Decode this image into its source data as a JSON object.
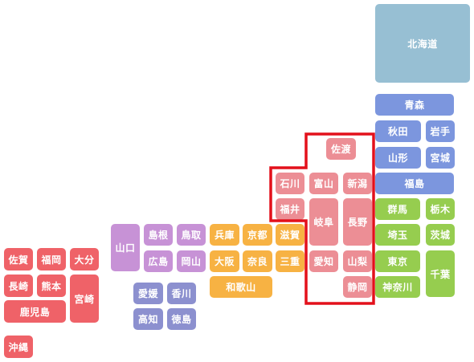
{
  "colors": {
    "hokkaido": "#97bfd3",
    "tohoku": "#7c96de",
    "kanto": "#96cd4f",
    "chubu": "#ec8e95",
    "kinki": "#f7b243",
    "chugoku": "#c792d6",
    "shikoku": "#8c90cf",
    "kyushu": "#ef6268",
    "highlight": "#e3101b"
  },
  "prefectures": {
    "hokkaido": "北海道",
    "aomori": "青森",
    "akita": "秋田",
    "iwate": "岩手",
    "yamagata": "山形",
    "miyagi": "宮城",
    "fukushima": "福島",
    "gunma": "群馬",
    "tochigi": "栃木",
    "saitama": "埼玉",
    "ibaraki": "茨城",
    "tokyo": "東京",
    "chiba": "千葉",
    "kanagawa": "神奈川",
    "sado": "佐渡",
    "ishikawa": "石川",
    "toyama": "富山",
    "niigata": "新潟",
    "fukui": "福井",
    "gifu": "岐阜",
    "nagano": "長野",
    "aichi": "愛知",
    "yamanashi": "山梨",
    "shizuoka": "静岡",
    "hyogo": "兵庫",
    "kyoto": "京都",
    "shiga": "滋賀",
    "osaka": "大阪",
    "nara": "奈良",
    "mie": "三重",
    "wakayama": "和歌山",
    "yamaguchi": "山口",
    "shimane": "島根",
    "tottori": "鳥取",
    "hiroshima": "広島",
    "okayama": "岡山",
    "ehime": "愛媛",
    "kagawa": "香川",
    "kochi": "高知",
    "tokushima": "徳島",
    "saga": "佐賀",
    "fukuoka": "福岡",
    "oita": "大分",
    "nagasaki": "長崎",
    "kumamoto": "熊本",
    "miyazaki": "宮崎",
    "kagoshima": "鹿児島",
    "okinawa": "沖縄"
  }
}
